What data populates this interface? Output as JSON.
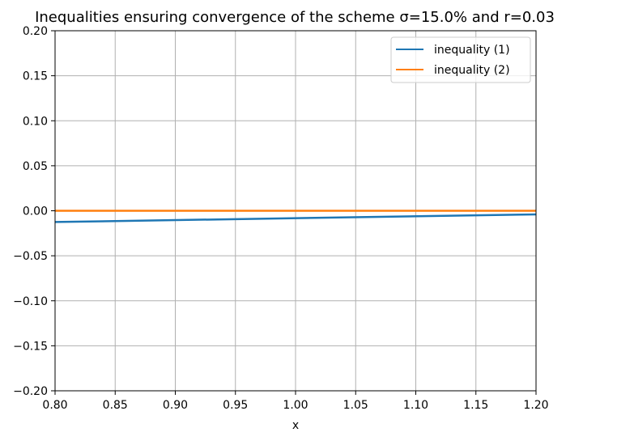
{
  "chart_data": {
    "type": "line",
    "title": "Inequalities ensuring convergence of the scheme σ=15.0% and r=0.03",
    "xlabel": "x",
    "ylabel": "",
    "xlim": [
      0.8,
      1.2
    ],
    "ylim": [
      -0.2,
      0.2
    ],
    "x_ticks": [
      "0.80",
      "0.85",
      "0.90",
      "0.95",
      "1.00",
      "1.05",
      "1.10",
      "1.15",
      "1.20"
    ],
    "y_ticks": [
      "−0.20",
      "−0.15",
      "−0.10",
      "−0.05",
      "0.00",
      "0.05",
      "0.10",
      "0.15",
      "0.20"
    ],
    "grid": true,
    "legend_position": "upper right",
    "series": [
      {
        "name": "inequality (1)",
        "color": "#1f77b4",
        "x": [
          0.8,
          1.2
        ],
        "y": [
          -0.0125,
          -0.004
        ]
      },
      {
        "name": "inequality (2)",
        "color": "#ff7f0e",
        "x": [
          0.8,
          1.2
        ],
        "y": [
          0.0,
          0.0
        ]
      }
    ]
  }
}
